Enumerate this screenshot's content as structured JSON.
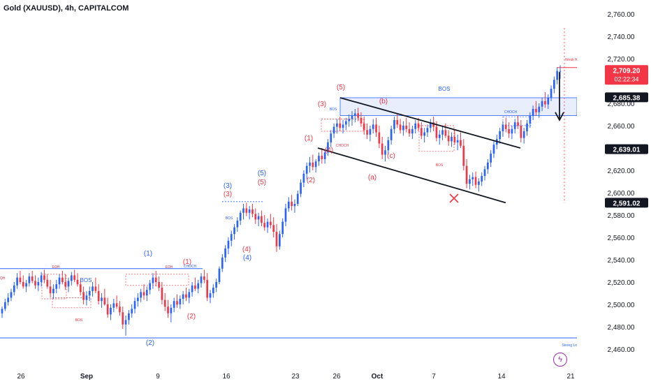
{
  "header": {
    "title": "Gold (XAUUSD), 4h, CAPITALCOM"
  },
  "colors": {
    "up": "#2962ff",
    "down": "#f23645",
    "zone": "#cfd9fb",
    "text_blue": "#2962ff",
    "text_red": "#f23645",
    "trendline": "#131722",
    "price_badge_live": "#f23645",
    "price_badge_dark": "#131722"
  },
  "axis": {
    "y_ticks": [
      "2,760.00",
      "2,740.00",
      "2,720.00",
      "2,700.00",
      "2,680.00",
      "2,660.00",
      "2,640.00",
      "2,620.00",
      "2,600.00",
      "2,580.00",
      "2,560.00",
      "2,540.00",
      "2,520.00",
      "2,500.00",
      "2,480.00",
      "2,460.00"
    ],
    "x_ticks": [
      "26",
      "Sep",
      "9",
      "16",
      "23",
      "26",
      "Oct",
      "7",
      "14",
      "21"
    ]
  },
  "price_badges": {
    "live_price": "2,709.20",
    "countdown": "02:22:34",
    "level_a": "2,685.38",
    "level_b": "2,639.01",
    "level_c": "2,591.02"
  },
  "chart_data": {
    "type": "candlestick",
    "title": "Gold (XAUUSD), 4h, CAPITALCOM",
    "ylim": [
      2455,
      2765
    ],
    "y_scale": "linear",
    "grid": false,
    "candles": [
      [
        2492,
        2498,
        2488,
        2496
      ],
      [
        2496,
        2505,
        2494,
        2502
      ],
      [
        2502,
        2510,
        2499,
        2506
      ],
      [
        2506,
        2514,
        2503,
        2511
      ],
      [
        2511,
        2520,
        2508,
        2517
      ],
      [
        2517,
        2528,
        2514,
        2524
      ],
      [
        2524,
        2530,
        2518,
        2520
      ],
      [
        2520,
        2526,
        2514,
        2516
      ],
      [
        2516,
        2522,
        2511,
        2519
      ],
      [
        2519,
        2528,
        2516,
        2525
      ],
      [
        2525,
        2530,
        2519,
        2521
      ],
      [
        2521,
        2526,
        2514,
        2517
      ],
      [
        2517,
        2524,
        2512,
        2520
      ],
      [
        2520,
        2529,
        2516,
        2526
      ],
      [
        2526,
        2531,
        2519,
        2522
      ],
      [
        2522,
        2527,
        2514,
        2516
      ],
      [
        2516,
        2522,
        2506,
        2510
      ],
      [
        2510,
        2518,
        2505,
        2514
      ],
      [
        2514,
        2522,
        2510,
        2518
      ],
      [
        2518,
        2527,
        2514,
        2524
      ],
      [
        2524,
        2530,
        2518,
        2520
      ],
      [
        2520,
        2527,
        2513,
        2516
      ],
      [
        2516,
        2524,
        2511,
        2521
      ],
      [
        2521,
        2529,
        2517,
        2526
      ],
      [
        2526,
        2531,
        2520,
        2522
      ],
      [
        2522,
        2528,
        2516,
        2518
      ],
      [
        2518,
        2522,
        2508,
        2511
      ],
      [
        2511,
        2516,
        2500,
        2504
      ],
      [
        2504,
        2512,
        2499,
        2508
      ],
      [
        2508,
        2516,
        2503,
        2512
      ],
      [
        2512,
        2520,
        2507,
        2516
      ],
      [
        2516,
        2524,
        2510,
        2512
      ],
      [
        2512,
        2518,
        2500,
        2503
      ],
      [
        2503,
        2510,
        2497,
        2506
      ],
      [
        2506,
        2514,
        2499,
        2500
      ],
      [
        2500,
        2506,
        2488,
        2491
      ],
      [
        2491,
        2500,
        2486,
        2497
      ],
      [
        2497,
        2505,
        2493,
        2501
      ],
      [
        2501,
        2508,
        2496,
        2498
      ],
      [
        2498,
        2503,
        2490,
        2493
      ],
      [
        2493,
        2498,
        2478,
        2482
      ],
      [
        2482,
        2490,
        2472,
        2486
      ],
      [
        2486,
        2495,
        2482,
        2492
      ],
      [
        2492,
        2500,
        2488,
        2496
      ],
      [
        2496,
        2506,
        2492,
        2503
      ],
      [
        2503,
        2510,
        2498,
        2506
      ],
      [
        2506,
        2514,
        2502,
        2511
      ],
      [
        2511,
        2518,
        2504,
        2508
      ],
      [
        2508,
        2516,
        2503,
        2513
      ],
      [
        2513,
        2522,
        2509,
        2519
      ],
      [
        2519,
        2528,
        2514,
        2524
      ],
      [
        2524,
        2530,
        2516,
        2520
      ],
      [
        2520,
        2525,
        2512,
        2515
      ],
      [
        2515,
        2520,
        2500,
        2504
      ],
      [
        2504,
        2510,
        2494,
        2498
      ],
      [
        2498,
        2504,
        2488,
        2492
      ],
      [
        2492,
        2500,
        2484,
        2497
      ],
      [
        2497,
        2506,
        2493,
        2503
      ],
      [
        2503,
        2509,
        2497,
        2500
      ],
      [
        2500,
        2508,
        2496,
        2505
      ],
      [
        2505,
        2512,
        2500,
        2509
      ],
      [
        2509,
        2515,
        2503,
        2506
      ],
      [
        2506,
        2514,
        2501,
        2511
      ],
      [
        2511,
        2520,
        2507,
        2517
      ],
      [
        2517,
        2524,
        2512,
        2514
      ],
      [
        2514,
        2522,
        2510,
        2519
      ],
      [
        2519,
        2528,
        2515,
        2525
      ],
      [
        2525,
        2531,
        2519,
        2522
      ],
      [
        2522,
        2528,
        2503,
        2506
      ],
      [
        2506,
        2513,
        2501,
        2510
      ],
      [
        2510,
        2518,
        2506,
        2515
      ],
      [
        2515,
        2523,
        2511,
        2520
      ],
      [
        2520,
        2534,
        2518,
        2532
      ],
      [
        2532,
        2545,
        2529,
        2542
      ],
      [
        2542,
        2553,
        2538,
        2550
      ],
      [
        2550,
        2560,
        2545,
        2557
      ],
      [
        2557,
        2566,
        2552,
        2563
      ],
      [
        2563,
        2572,
        2558,
        2569
      ],
      [
        2569,
        2578,
        2565,
        2575
      ],
      [
        2575,
        2584,
        2571,
        2582
      ],
      [
        2582,
        2590,
        2576,
        2586
      ],
      [
        2586,
        2591,
        2579,
        2582
      ],
      [
        2582,
        2588,
        2576,
        2585
      ],
      [
        2585,
        2590,
        2578,
        2581
      ],
      [
        2581,
        2586,
        2572,
        2576
      ],
      [
        2576,
        2582,
        2570,
        2579
      ],
      [
        2579,
        2584,
        2570,
        2573
      ],
      [
        2573,
        2580,
        2566,
        2569
      ],
      [
        2569,
        2577,
        2564,
        2574
      ],
      [
        2574,
        2581,
        2568,
        2571
      ],
      [
        2571,
        2578,
        2560,
        2565
      ],
      [
        2565,
        2572,
        2547,
        2552
      ],
      [
        2552,
        2566,
        2549,
        2563
      ],
      [
        2563,
        2577,
        2560,
        2574
      ],
      [
        2574,
        2590,
        2570,
        2586
      ],
      [
        2586,
        2596,
        2583,
        2592
      ],
      [
        2592,
        2598,
        2584,
        2588
      ],
      [
        2588,
        2594,
        2582,
        2590
      ],
      [
        2590,
        2602,
        2588,
        2599
      ],
      [
        2599,
        2612,
        2596,
        2609
      ],
      [
        2609,
        2620,
        2605,
        2617
      ],
      [
        2617,
        2627,
        2612,
        2624
      ],
      [
        2624,
        2632,
        2618,
        2627
      ],
      [
        2627,
        2634,
        2620,
        2623
      ],
      [
        2623,
        2630,
        2618,
        2628
      ],
      [
        2628,
        2636,
        2624,
        2633
      ],
      [
        2633,
        2640,
        2626,
        2630
      ],
      [
        2630,
        2638,
        2626,
        2636
      ],
      [
        2636,
        2648,
        2633,
        2645
      ],
      [
        2645,
        2656,
        2641,
        2653
      ],
      [
        2653,
        2662,
        2649,
        2659
      ],
      [
        2659,
        2666,
        2653,
        2662
      ],
      [
        2662,
        2668,
        2655,
        2658
      ],
      [
        2658,
        2665,
        2653,
        2661
      ],
      [
        2661,
        2667,
        2656,
        2664
      ],
      [
        2664,
        2670,
        2659,
        2666
      ],
      [
        2666,
        2673,
        2660,
        2669
      ],
      [
        2669,
        2675,
        2663,
        2671
      ],
      [
        2671,
        2676,
        2664,
        2667
      ],
      [
        2667,
        2672,
        2659,
        2662
      ],
      [
        2662,
        2668,
        2652,
        2656
      ],
      [
        2656,
        2662,
        2648,
        2652
      ],
      [
        2652,
        2660,
        2646,
        2657
      ],
      [
        2657,
        2666,
        2653,
        2661
      ],
      [
        2661,
        2667,
        2650,
        2654
      ],
      [
        2654,
        2660,
        2640,
        2644
      ],
      [
        2644,
        2650,
        2630,
        2634
      ],
      [
        2634,
        2642,
        2628,
        2638
      ],
      [
        2638,
        2650,
        2634,
        2647
      ],
      [
        2647,
        2660,
        2643,
        2657
      ],
      [
        2657,
        2668,
        2653,
        2665
      ],
      [
        2665,
        2671,
        2658,
        2661
      ],
      [
        2661,
        2666,
        2653,
        2656
      ],
      [
        2656,
        2664,
        2651,
        2660
      ],
      [
        2660,
        2667,
        2654,
        2657
      ],
      [
        2657,
        2663,
        2650,
        2653
      ],
      [
        2653,
        2660,
        2648,
        2657
      ],
      [
        2657,
        2665,
        2653,
        2662
      ],
      [
        2662,
        2667,
        2655,
        2658
      ],
      [
        2658,
        2663,
        2648,
        2651
      ],
      [
        2651,
        2658,
        2645,
        2654
      ],
      [
        2654,
        2661,
        2650,
        2658
      ],
      [
        2658,
        2666,
        2654,
        2663
      ],
      [
        2663,
        2668,
        2655,
        2659
      ],
      [
        2659,
        2664,
        2646,
        2649
      ],
      [
        2649,
        2656,
        2643,
        2652
      ],
      [
        2652,
        2660,
        2647,
        2656
      ],
      [
        2656,
        2662,
        2649,
        2651
      ],
      [
        2651,
        2656,
        2642,
        2646
      ],
      [
        2646,
        2654,
        2641,
        2650
      ],
      [
        2650,
        2656,
        2643,
        2645
      ],
      [
        2645,
        2652,
        2638,
        2647
      ],
      [
        2647,
        2654,
        2640,
        2642
      ],
      [
        2642,
        2648,
        2620,
        2624
      ],
      [
        2624,
        2630,
        2604,
        2608
      ],
      [
        2608,
        2616,
        2603,
        2612
      ],
      [
        2612,
        2618,
        2606,
        2614
      ],
      [
        2614,
        2619,
        2604,
        2607
      ],
      [
        2607,
        2613,
        2601,
        2610
      ],
      [
        2610,
        2618,
        2606,
        2615
      ],
      [
        2615,
        2624,
        2611,
        2621
      ],
      [
        2621,
        2630,
        2617,
        2627
      ],
      [
        2627,
        2638,
        2623,
        2635
      ],
      [
        2635,
        2646,
        2631,
        2643
      ],
      [
        2643,
        2652,
        2639,
        2648
      ],
      [
        2648,
        2658,
        2644,
        2655
      ],
      [
        2655,
        2664,
        2650,
        2661
      ],
      [
        2661,
        2667,
        2654,
        2657
      ],
      [
        2657,
        2663,
        2649,
        2653
      ],
      [
        2653,
        2660,
        2648,
        2657
      ],
      [
        2657,
        2666,
        2653,
        2663
      ],
      [
        2663,
        2669,
        2657,
        2660
      ],
      [
        2660,
        2665,
        2645,
        2649
      ],
      [
        2649,
        2658,
        2644,
        2655
      ],
      [
        2655,
        2665,
        2651,
        2662
      ],
      [
        2662,
        2672,
        2658,
        2669
      ],
      [
        2669,
        2678,
        2665,
        2675
      ],
      [
        2675,
        2682,
        2669,
        2672
      ],
      [
        2672,
        2680,
        2667,
        2677
      ],
      [
        2677,
        2685,
        2673,
        2682
      ],
      [
        2682,
        2690,
        2676,
        2679
      ],
      [
        2679,
        2688,
        2675,
        2685
      ],
      [
        2685,
        2696,
        2682,
        2693
      ],
      [
        2693,
        2704,
        2689,
        2701
      ],
      [
        2701,
        2712,
        2697,
        2709
      ],
      [
        2709,
        2714,
        2702,
        2709
      ]
    ],
    "annotations": [
      {
        "text": "BOS",
        "color": "blue"
      },
      {
        "text": "EQH",
        "color": "red"
      },
      {
        "text": "EQH",
        "color": "red"
      },
      {
        "text": "EQH",
        "color": "red"
      },
      {
        "text": "BOS",
        "color": "red"
      },
      {
        "text": "(1)",
        "color": "blue"
      },
      {
        "text": "(2)",
        "color": "blue"
      },
      {
        "text": "(1)",
        "color": "red"
      },
      {
        "text": "(2)",
        "color": "red"
      },
      {
        "text": "CHOCH",
        "color": "blue"
      },
      {
        "text": "(3)",
        "color": "blue"
      },
      {
        "text": "(3)",
        "color": "red"
      },
      {
        "text": "BOS",
        "color": "blue"
      },
      {
        "text": "(4)",
        "color": "red"
      },
      {
        "text": "(4)",
        "color": "blue"
      },
      {
        "text": "(5)",
        "color": "blue"
      },
      {
        "text": "(5)",
        "color": "red"
      },
      {
        "text": "(1)",
        "color": "red"
      },
      {
        "text": "(2)",
        "color": "red"
      },
      {
        "text": "(3)",
        "color": "red"
      },
      {
        "text": "(4)",
        "color": "red"
      },
      {
        "text": "(5)",
        "color": "red"
      },
      {
        "text": "BOS",
        "color": "blue"
      },
      {
        "text": "CHOCH",
        "color": "red"
      },
      {
        "text": "(b)",
        "color": "red"
      },
      {
        "text": "(a)",
        "color": "red"
      },
      {
        "text": "(c)",
        "color": "red"
      },
      {
        "text": "BOS",
        "color": "red"
      },
      {
        "text": "BOS",
        "color": "blue"
      },
      {
        "text": "CHOCH",
        "color": "blue"
      },
      {
        "text": "Weak High",
        "color": "red"
      },
      {
        "text": "Strong Low",
        "color": "blue"
      }
    ]
  }
}
